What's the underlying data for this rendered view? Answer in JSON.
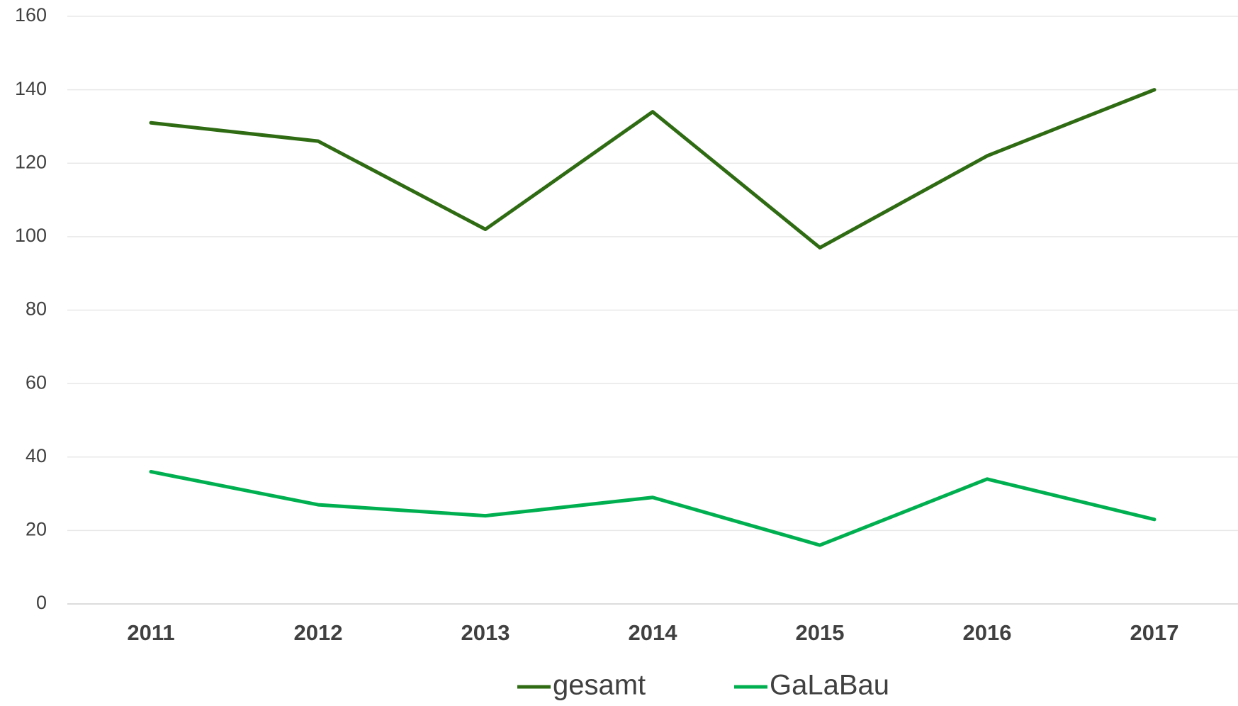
{
  "chart_data": {
    "type": "line",
    "categories": [
      "2011",
      "2012",
      "2013",
      "2014",
      "2015",
      "2016",
      "2017"
    ],
    "series": [
      {
        "name": "gesamt",
        "color": "#2e6b12",
        "values": [
          131,
          126,
          102,
          134,
          97,
          122,
          140
        ]
      },
      {
        "name": "GaLaBau",
        "color": "#00b050",
        "values": [
          36,
          27,
          24,
          29,
          16,
          34,
          23
        ]
      }
    ],
    "ylim": [
      0,
      160
    ],
    "yticks": [
      0,
      20,
      40,
      60,
      80,
      100,
      120,
      140,
      160
    ],
    "grid": true,
    "legend": "bottom"
  }
}
